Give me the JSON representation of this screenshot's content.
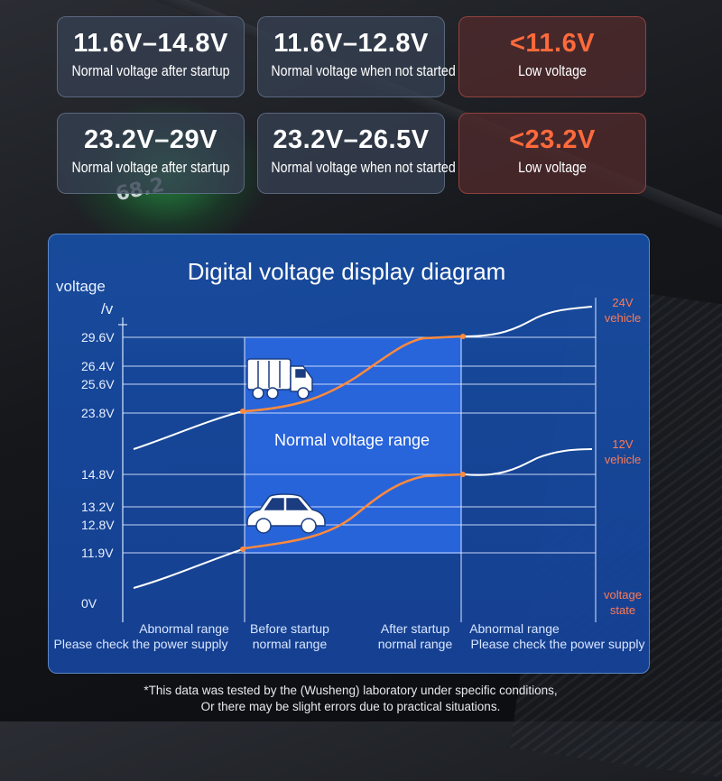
{
  "cards": [
    {
      "value": "11.6V–14.8V",
      "label": "Normal voltage after startup",
      "low": false
    },
    {
      "value": "11.6V–12.8V",
      "label": "Normal voltage when not started",
      "low": false
    },
    {
      "value": "<11.6V",
      "label": "Low voltage",
      "low": true
    },
    {
      "value": "23.2V–29V",
      "label": "Normal voltage after startup",
      "low": false
    },
    {
      "value": "23.2V–26.5V",
      "label": "Normal voltage when not started",
      "low": false
    },
    {
      "value": "<23.2V",
      "label": "Low voltage",
      "low": true
    }
  ],
  "background_readout": "68.2",
  "diagram": {
    "title": "Digital voltage display diagram",
    "axis_label_line1": "voltage",
    "axis_label_line2": "/v",
    "ticks": [
      "29.6V",
      "26.4V",
      "25.6V",
      "23.8V",
      "14.8V",
      "13.2V",
      "12.8V",
      "11.9V",
      "0V"
    ],
    "normal_range_label": "Normal voltage range",
    "right_labels": {
      "v24_line1": "24V",
      "v24_line2": "vehicle",
      "v12_line1": "12V",
      "v12_line2": "vehicle",
      "state_line1": "voltage",
      "state_line2": "state"
    },
    "zones": [
      {
        "line1": "Abnormal range",
        "line2": "Please check the power supply"
      },
      {
        "line1": "Before startup",
        "line2": "normal range"
      },
      {
        "line1": "After startup",
        "line2": "normal range"
      },
      {
        "line1": "Abnormal range",
        "line2": "Please check the power supply"
      }
    ],
    "colors": {
      "panel": "#1c4c9e",
      "normal_band": "#2f6ff0",
      "curve_normal": "#ff8a3c",
      "curve_abnormal": "#ffffff",
      "right_label": "#ff7a52"
    }
  },
  "footnote": {
    "line1": "*This data was tested by the (Wusheng) laboratory under specific conditions,",
    "line2": "Or there may be slight errors due to practical situations."
  }
}
